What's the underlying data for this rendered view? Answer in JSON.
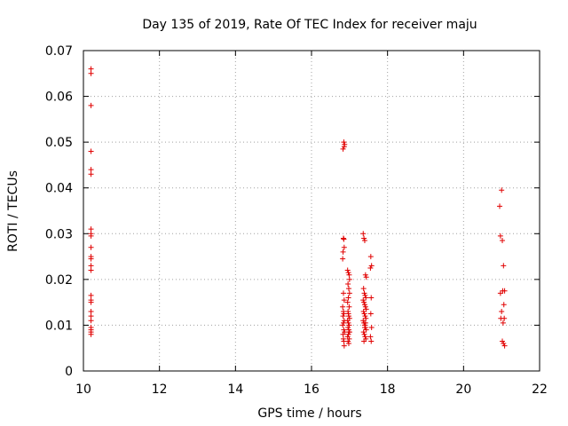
{
  "chart_data": {
    "type": "scatter",
    "title": "Day 135 of 2019, Rate Of TEC Index for receiver maju",
    "xlabel": "GPS time / hours",
    "ylabel": "ROTI / TECUs",
    "xlim": [
      10,
      22
    ],
    "ylim": [
      0,
      0.07
    ],
    "xticks": [
      10,
      12,
      14,
      16,
      18,
      20,
      22
    ],
    "xtick_labels": [
      "10",
      "12",
      "14",
      "16",
      "18",
      "20",
      "22"
    ],
    "yticks": [
      0,
      0.01,
      0.02,
      0.03,
      0.04,
      0.05,
      0.06,
      0.07
    ],
    "ytick_labels": [
      "0",
      "0.01",
      "0.02",
      "0.03",
      "0.04",
      "0.05",
      "0.06",
      "0.07"
    ],
    "grid": true,
    "marker": "+",
    "color": "#e00000",
    "series": [
      {
        "name": "ROTI",
        "x": [
          10.2,
          10.2,
          10.2,
          10.2,
          10.2,
          10.2,
          10.2,
          10.2,
          10.2,
          10.2,
          10.2,
          10.2,
          10.2,
          10.2,
          10.2,
          10.2,
          10.2,
          10.2,
          10.2,
          10.2,
          10.2,
          10.2,
          10.2,
          10.2,
          16.85,
          16.87,
          16.86,
          16.83,
          16.84,
          16.85,
          16.86,
          16.83,
          16.82,
          16.84,
          16.86,
          16.82,
          16.84,
          16.85,
          16.83,
          16.86,
          16.84,
          16.82,
          16.85,
          16.87,
          16.83,
          16.84,
          16.85,
          16.86,
          16.95,
          16.97,
          16.99,
          17.0,
          16.96,
          16.98,
          17.0,
          16.97,
          16.95,
          16.99,
          16.96,
          16.98,
          17.0,
          16.95,
          16.97,
          16.99,
          16.96,
          16.98,
          17.0,
          16.97,
          16.95,
          16.99,
          16.96,
          16.98,
          16.97,
          16.99,
          17.36,
          17.38,
          17.4,
          17.42,
          17.44,
          17.37,
          17.39,
          17.41,
          17.43,
          17.36,
          17.38,
          17.4,
          17.42,
          17.44,
          17.37,
          17.39,
          17.41,
          17.43,
          17.36,
          17.38,
          17.4,
          17.42,
          17.44,
          17.37,
          17.39,
          17.41,
          17.43,
          17.38,
          17.4,
          17.42,
          17.56,
          17.58,
          17.55,
          17.57,
          17.56,
          17.58,
          17.55,
          17.57,
          20.95,
          20.97,
          21.0,
          21.02,
          21.05,
          21.08,
          20.97,
          21.03,
          21.06,
          21.0,
          20.98,
          21.04,
          21.07,
          21.02,
          21.05,
          21.08
        ],
        "y": [
          0.066,
          0.065,
          0.058,
          0.048,
          0.044,
          0.043,
          0.031,
          0.03,
          0.0295,
          0.027,
          0.025,
          0.0245,
          0.023,
          0.022,
          0.0165,
          0.0155,
          0.015,
          0.013,
          0.012,
          0.011,
          0.0095,
          0.009,
          0.0085,
          0.008,
          0.05,
          0.0495,
          0.049,
          0.0485,
          0.029,
          0.0288,
          0.027,
          0.026,
          0.0245,
          0.017,
          0.0155,
          0.014,
          0.013,
          0.0125,
          0.012,
          0.011,
          0.0105,
          0.01,
          0.009,
          0.0085,
          0.008,
          0.007,
          0.0065,
          0.0055,
          0.022,
          0.0215,
          0.021,
          0.02,
          0.019,
          0.018,
          0.017,
          0.016,
          0.015,
          0.014,
          0.013,
          0.012,
          0.0115,
          0.011,
          0.0105,
          0.01,
          0.0095,
          0.009,
          0.0085,
          0.008,
          0.0075,
          0.007,
          0.0065,
          0.006,
          0.0125,
          0.0085,
          0.03,
          0.029,
          0.0285,
          0.021,
          0.0205,
          0.018,
          0.017,
          0.0165,
          0.016,
          0.0155,
          0.015,
          0.0145,
          0.014,
          0.0135,
          0.013,
          0.0125,
          0.012,
          0.0115,
          0.011,
          0.0105,
          0.01,
          0.0095,
          0.009,
          0.0085,
          0.008,
          0.0075,
          0.007,
          0.0065,
          0.0095,
          0.0105,
          0.025,
          0.023,
          0.0225,
          0.016,
          0.0125,
          0.0095,
          0.0075,
          0.0065,
          0.036,
          0.0295,
          0.0395,
          0.0285,
          0.023,
          0.0175,
          0.017,
          0.0175,
          0.0145,
          0.013,
          0.0115,
          0.0105,
          0.0115,
          0.0065,
          0.006,
          0.0055
        ]
      }
    ]
  }
}
